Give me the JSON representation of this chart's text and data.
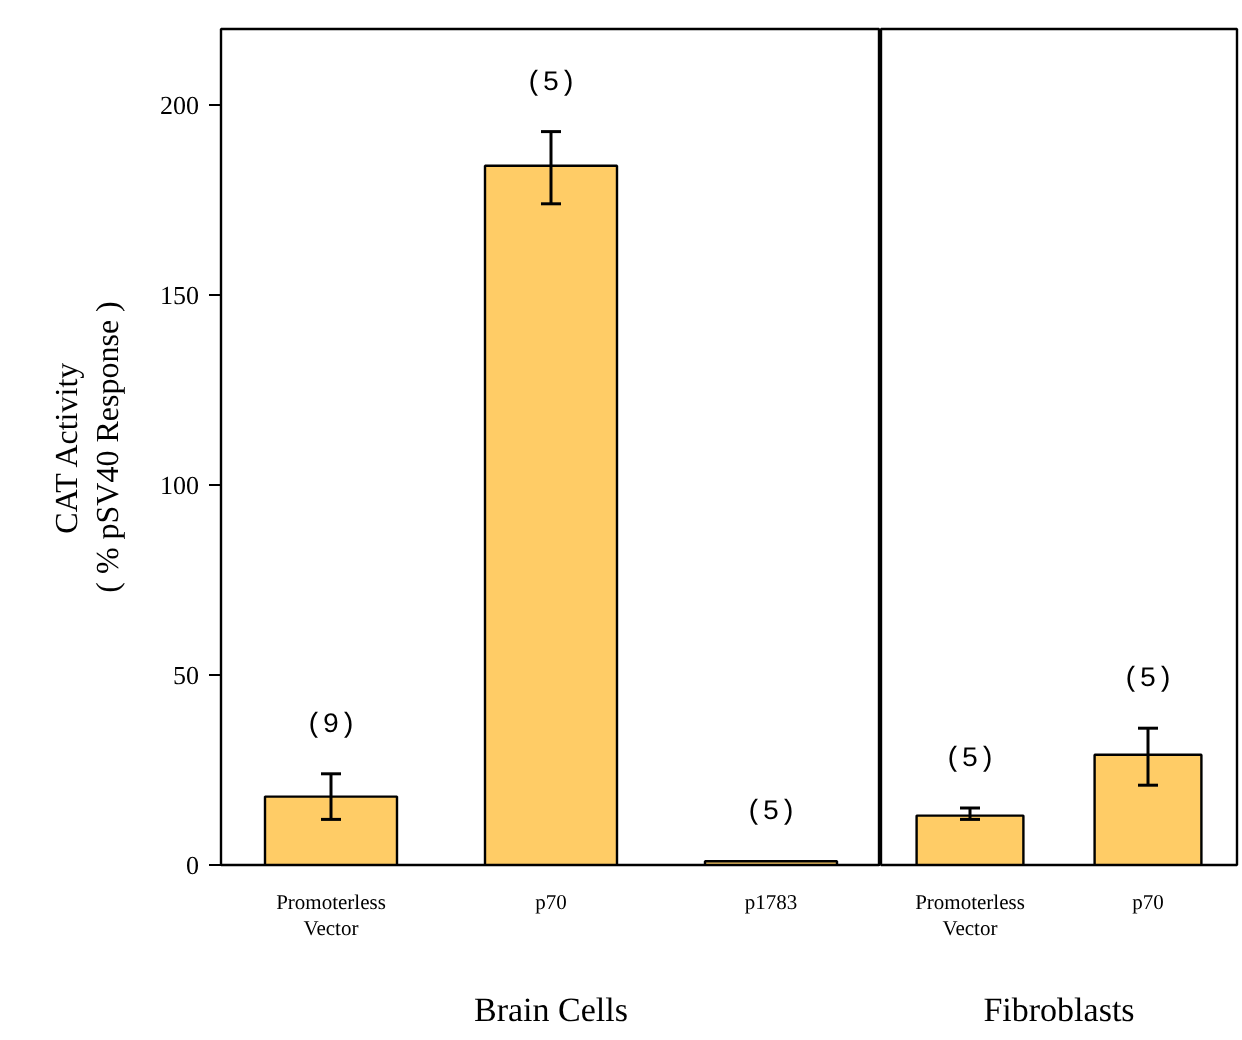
{
  "chart_data": [
    {
      "type": "bar",
      "xlabel": "Brain Cells",
      "ylabel": "CAT Activity\n( % pSV40 Response )",
      "categories": [
        "Promoterless Vector",
        "p70",
        "p1783"
      ],
      "values": [
        18,
        184,
        1
      ],
      "errors": [
        [
          12,
          24
        ],
        [
          174,
          193
        ],
        null
      ],
      "color": "#ffcc66",
      "ylim": [
        0,
        220
      ],
      "yticks": [
        0,
        50,
        100,
        150,
        200
      ],
      "grid": false,
      "annotations": [
        "(9)",
        "(5)",
        "(5)"
      ]
    },
    {
      "type": "bar",
      "xlabel": "Fibroblasts",
      "categories": [
        "Promoterless Vector",
        "p70"
      ],
      "values": [
        13,
        29
      ],
      "errors": [
        [
          12,
          15
        ],
        [
          21,
          36
        ]
      ],
      "color": "#ffcc66",
      "ylim": [
        0,
        220
      ],
      "yticks": [
        0,
        50,
        100,
        150,
        200
      ],
      "tick_labels": "x",
      "grid": false,
      "annotations": [
        "(5)",
        "(5)"
      ]
    }
  ]
}
